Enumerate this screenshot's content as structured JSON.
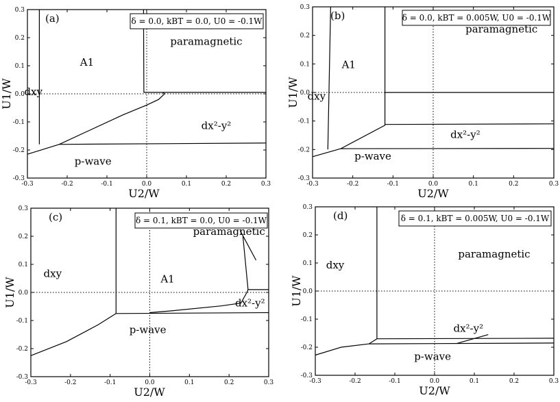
{
  "chart_data": [
    {
      "type": "line",
      "panel_label": "(a)",
      "legend": "δ = 0.0, kBT = 0.0, U0 = -0.1W",
      "xlabel": "U2/W",
      "ylabel": "U1/W",
      "xlim": [
        -0.3,
        0.3
      ],
      "ylim": [
        -0.3,
        0.3
      ],
      "xticks": [
        "-0.3",
        "-0.2",
        "-0.1",
        "0.0",
        "0.1",
        "0.2",
        "0.3"
      ],
      "yticks": [
        "0.3",
        "0.2",
        "0.1",
        "0.0",
        "-0.1",
        "-0.2",
        "-0.3"
      ],
      "grid": false,
      "zero_lines": true,
      "regions": [
        {
          "label": "A1",
          "x": -0.15,
          "y": 0.1
        },
        {
          "label": "paramagnetic",
          "x": 0.15,
          "y": 0.175
        },
        {
          "label": "dxy",
          "x": -0.285,
          "y": -0.005
        },
        {
          "label": "dx²-y²",
          "x": 0.175,
          "y": -0.125
        },
        {
          "label": "p-wave",
          "x": -0.135,
          "y": -0.253
        }
      ],
      "series": [
        {
          "values": [
            [
              -0.27,
              0.3
            ],
            [
              -0.27,
              -0.18
            ]
          ]
        },
        {
          "values": [
            [
              -0.3,
              -0.215
            ],
            [
              -0.22,
              -0.18
            ],
            [
              -0.06,
              -0.075
            ],
            [
              0.0,
              -0.04
            ],
            [
              0.03,
              -0.02
            ],
            [
              0.045,
              0.0
            ],
            [
              0.04,
              0.005
            ],
            [
              -0.007,
              0.005
            ],
            [
              -0.008,
              0.3
            ]
          ]
        },
        {
          "values": [
            [
              -0.22,
              -0.18
            ],
            [
              0.3,
              -0.175
            ]
          ]
        },
        {
          "values": [
            [
              0.04,
              0.005
            ],
            [
              0.3,
              0.005
            ]
          ]
        }
      ]
    },
    {
      "type": "line",
      "panel_label": "(b)",
      "legend": "δ = 0.0, kBT = 0.005W, U0 = -0.1W",
      "xlabel": "U2/W",
      "ylabel": "U1/W",
      "xlim": [
        -0.3,
        0.3
      ],
      "ylim": [
        -0.3,
        0.3
      ],
      "xticks": [
        "-0.3",
        "-0.2",
        "-0.1",
        "0.0",
        "0.1",
        "0.2",
        "0.3"
      ],
      "yticks": [
        "0.3",
        "0.2",
        "0.1",
        "0.0",
        "-0.1",
        "-0.2",
        "-0.3"
      ],
      "grid": false,
      "zero_lines": true,
      "regions": [
        {
          "label": "A1",
          "x": -0.21,
          "y": 0.085
        },
        {
          "label": "paramagnetic",
          "x": 0.17,
          "y": 0.21
        },
        {
          "label": "dxy",
          "x": -0.29,
          "y": -0.025
        },
        {
          "label": "dx²-y²",
          "x": 0.08,
          "y": -0.16
        },
        {
          "label": "p-wave",
          "x": -0.15,
          "y": -0.235
        }
      ],
      "series": [
        {
          "values": [
            [
              -0.255,
              0.3
            ],
            [
              -0.262,
              -0.2
            ]
          ]
        },
        {
          "values": [
            [
              -0.3,
              -0.225
            ],
            [
              -0.23,
              -0.197
            ],
            [
              -0.12,
              -0.115
            ],
            [
              -0.12,
              0.3
            ]
          ]
        },
        {
          "values": [
            [
              -0.12,
              0.0
            ],
            [
              0.3,
              0.0
            ]
          ]
        },
        {
          "values": [
            [
              -0.12,
              -0.112
            ],
            [
              0.3,
              -0.11
            ]
          ]
        },
        {
          "values": [
            [
              -0.23,
              -0.197
            ],
            [
              0.3,
              -0.196
            ]
          ]
        }
      ]
    },
    {
      "type": "line",
      "panel_label": "(c)",
      "legend": "δ = 0.1, kBT = 0.0, U0 = -0.1W",
      "xlabel": "U2/W",
      "ylabel": "U1/W",
      "xlim": [
        -0.3,
        0.3
      ],
      "ylim": [
        -0.3,
        0.3
      ],
      "xticks": [
        "-0.3",
        "-0.2",
        "-0.1",
        "0.0",
        "0.1",
        "0.2",
        "0.3"
      ],
      "yticks": [
        "0.3",
        "0.2",
        "0.1",
        "0.0",
        "-0.1",
        "-0.2",
        "-0.3"
      ],
      "grid": false,
      "zero_lines": true,
      "regions": [
        {
          "label": "dxy",
          "x": -0.245,
          "y": 0.055
        },
        {
          "label": "A1",
          "x": 0.045,
          "y": 0.035
        },
        {
          "label": "paramagnetic",
          "x": 0.2,
          "y": 0.205
        },
        {
          "label": "dx²-y²",
          "x": 0.253,
          "y": -0.05
        },
        {
          "label": "p-wave",
          "x": -0.005,
          "y": -0.145
        }
      ],
      "series": [
        {
          "values": [
            [
              -0.085,
              0.3
            ],
            [
              -0.085,
              -0.075
            ]
          ]
        },
        {
          "values": [
            [
              -0.3,
              -0.225
            ],
            [
              -0.21,
              -0.175
            ],
            [
              -0.13,
              -0.115
            ],
            [
              -0.085,
              -0.075
            ]
          ]
        },
        {
          "values": [
            [
              -0.085,
              -0.075
            ],
            [
              0.3,
              -0.072
            ]
          ]
        },
        {
          "values": [
            [
              0.0,
              -0.072
            ],
            [
              0.06,
              -0.065
            ],
            [
              0.18,
              -0.048
            ],
            [
              0.23,
              -0.038
            ],
            [
              0.245,
              0.0
            ],
            [
              0.248,
              0.01
            ]
          ]
        },
        {
          "values": [
            [
              0.248,
              0.01
            ],
            [
              0.3,
              0.01
            ]
          ]
        },
        {
          "values": [
            [
              0.248,
              0.01
            ],
            [
              0.235,
              0.2
            ]
          ]
        },
        {
          "values": [
            [
              0.228,
              0.22
            ],
            [
              0.268,
              0.115
            ]
          ]
        }
      ]
    },
    {
      "type": "line",
      "panel_label": "(d)",
      "legend": "δ = 0.1, kBT = 0.005W, U0 = -0.1W",
      "xlabel": "U2/W",
      "ylabel": "U1/W",
      "xlim": [
        -0.3,
        0.3
      ],
      "ylim": [
        -0.3,
        0.3
      ],
      "xticks": [
        "-0.3",
        "-0.2",
        "-0.1",
        "0.0",
        "0.1",
        "0.2",
        "0.3"
      ],
      "yticks": [
        "0.3",
        "0.2",
        "0.1",
        "0.0",
        "-0.1",
        "-0.2",
        "-0.3"
      ],
      "grid": false,
      "zero_lines": true,
      "regions": [
        {
          "label": "dxy",
          "x": -0.25,
          "y": 0.08
        },
        {
          "label": "paramagnetic",
          "x": 0.15,
          "y": 0.12
        },
        {
          "label": "dx²-y²",
          "x": 0.085,
          "y": -0.145
        },
        {
          "label": "p-wave",
          "x": -0.005,
          "y": -0.245
        }
      ],
      "series": [
        {
          "values": [
            [
              -0.145,
              0.3
            ],
            [
              -0.145,
              -0.17
            ]
          ]
        },
        {
          "values": [
            [
              -0.3,
              -0.228
            ],
            [
              -0.235,
              -0.2
            ],
            [
              -0.165,
              -0.188
            ],
            [
              -0.145,
              -0.17
            ]
          ]
        },
        {
          "values": [
            [
              -0.145,
              -0.17
            ],
            [
              0.3,
              -0.168
            ]
          ]
        },
        {
          "values": [
            [
              -0.165,
              -0.188
            ],
            [
              0.3,
              -0.185
            ]
          ]
        },
        {
          "values": [
            [
              0.135,
              -0.155
            ],
            [
              0.055,
              -0.187
            ]
          ]
        }
      ]
    }
  ]
}
